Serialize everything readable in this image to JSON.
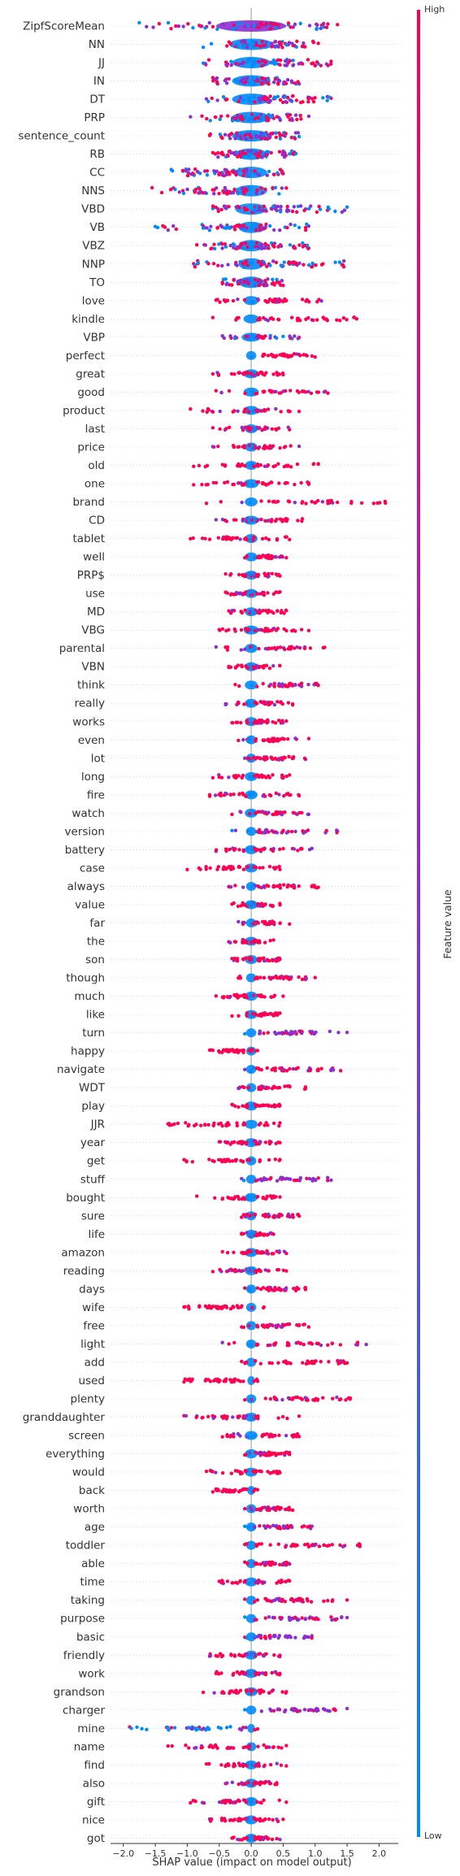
{
  "chart_data": {
    "type": "scatter",
    "subtype": "shap-beeswarm-summary",
    "xlabel": "SHAP value (impact on model output)",
    "xlim": [
      -2.2,
      2.3
    ],
    "xticks": [
      -2.0,
      -1.5,
      -1.0,
      -0.5,
      0.0,
      0.5,
      1.0,
      1.5,
      2.0
    ],
    "xtick_labels": [
      "−2.0",
      "−1.5",
      "−1.0",
      "−0.5",
      "0.0",
      "0.5",
      "1.0",
      "1.5",
      "2.0"
    ],
    "colorbar": {
      "title": "Feature value",
      "high_label": "High",
      "low_label": "Low",
      "high_color": "#ff0052",
      "low_color": "#008bfb"
    },
    "grid": false,
    "features": [
      {
        "name": "ZipfScoreMean",
        "range": [
          -1.75,
          1.35
        ],
        "color": "mixed",
        "core": 0.55
      },
      {
        "name": "NN",
        "range": [
          -0.75,
          1.05
        ],
        "color": "mixed",
        "core": 0.35
      },
      {
        "name": "JJ",
        "range": [
          -0.75,
          1.25
        ],
        "color": "mixed",
        "core": 0.3
      },
      {
        "name": "IN",
        "range": [
          -0.6,
          0.75
        ],
        "color": "mixed",
        "core": 0.3
      },
      {
        "name": "DT",
        "range": [
          -0.7,
          1.25
        ],
        "color": "mixed",
        "core": 0.3
      },
      {
        "name": "PRP",
        "range": [
          -0.95,
          0.9
        ],
        "color": "mixed",
        "core": 0.3
      },
      {
        "name": "sentence_count",
        "range": [
          -0.65,
          0.75
        ],
        "color": "mixed",
        "core": 0.3
      },
      {
        "name": "RB",
        "range": [
          -0.6,
          0.7
        ],
        "color": "mixed",
        "core": 0.25
      },
      {
        "name": "CC",
        "range": [
          -1.25,
          0.5
        ],
        "color": "mixed",
        "core": 0.25
      },
      {
        "name": "NNS",
        "range": [
          -1.55,
          0.55
        ],
        "color": "mixed",
        "core": 0.25
      },
      {
        "name": "VBD",
        "range": [
          -0.6,
          1.5
        ],
        "color": "mixed",
        "core": 0.25
      },
      {
        "name": "VB",
        "range": [
          -1.5,
          0.9
        ],
        "color": "mixed",
        "core": 0.2
      },
      {
        "name": "VBZ",
        "range": [
          -0.85,
          0.9
        ],
        "color": "mixed",
        "core": 0.2
      },
      {
        "name": "NNP",
        "range": [
          -0.9,
          1.45
        ],
        "color": "mixed",
        "core": 0.2
      },
      {
        "name": "TO",
        "range": [
          -0.45,
          0.5
        ],
        "color": "mixed",
        "core": 0.2
      },
      {
        "name": "love",
        "range": [
          -0.55,
          1.1
        ],
        "color": "pos",
        "core": 0.12
      },
      {
        "name": "kindle",
        "range": [
          -0.6,
          1.65
        ],
        "color": "pos",
        "core": 0.12
      },
      {
        "name": "VBP",
        "range": [
          -0.45,
          0.75
        ],
        "color": "mixed",
        "core": 0.15
      },
      {
        "name": "perfect",
        "range": [
          0.0,
          1.0
        ],
        "color": "pos",
        "core": 0.08
      },
      {
        "name": "great",
        "range": [
          -0.6,
          0.5
        ],
        "color": "pos",
        "core": 0.12
      },
      {
        "name": "good",
        "range": [
          -0.55,
          1.2
        ],
        "color": "pos",
        "core": 0.12
      },
      {
        "name": "product",
        "range": [
          -0.95,
          0.75
        ],
        "color": "pos",
        "core": 0.12
      },
      {
        "name": "last",
        "range": [
          -0.6,
          0.6
        ],
        "color": "pos",
        "core": 0.1
      },
      {
        "name": "price",
        "range": [
          -0.6,
          0.75
        ],
        "color": "pos",
        "core": 0.1
      },
      {
        "name": "old",
        "range": [
          -0.9,
          1.05
        ],
        "color": "pos",
        "core": 0.1
      },
      {
        "name": "one",
        "range": [
          -0.9,
          0.9
        ],
        "color": "pos",
        "core": 0.12
      },
      {
        "name": "brand",
        "range": [
          -0.7,
          2.1
        ],
        "color": "pos",
        "core": 0.1
      },
      {
        "name": "CD",
        "range": [
          -0.55,
          0.8
        ],
        "color": "pos",
        "core": 0.12
      },
      {
        "name": "tablet",
        "range": [
          -0.95,
          0.6
        ],
        "color": "pos",
        "core": 0.1
      },
      {
        "name": "well",
        "range": [
          -0.1,
          0.55
        ],
        "color": "pos",
        "core": 0.1
      },
      {
        "name": "PRP$",
        "range": [
          -0.4,
          0.45
        ],
        "color": "pos",
        "core": 0.1
      },
      {
        "name": "use",
        "range": [
          -0.4,
          0.45
        ],
        "color": "pos",
        "core": 0.1
      },
      {
        "name": "MD",
        "range": [
          -0.35,
          0.55
        ],
        "color": "pos",
        "core": 0.1
      },
      {
        "name": "VBG",
        "range": [
          -0.5,
          0.9
        ],
        "color": "pos",
        "core": 0.12
      },
      {
        "name": "parental",
        "range": [
          -0.55,
          1.15
        ],
        "color": "pos",
        "core": 0.1
      },
      {
        "name": "VBN",
        "range": [
          -0.35,
          0.45
        ],
        "color": "pos",
        "core": 0.1
      },
      {
        "name": "think",
        "range": [
          -0.25,
          1.05
        ],
        "color": "pos",
        "core": 0.1
      },
      {
        "name": "really",
        "range": [
          -0.4,
          0.65
        ],
        "color": "pos",
        "core": 0.1
      },
      {
        "name": "works",
        "range": [
          -0.3,
          0.55
        ],
        "color": "pos",
        "core": 0.1
      },
      {
        "name": "even",
        "range": [
          -0.2,
          0.9
        ],
        "color": "pos",
        "core": 0.08
      },
      {
        "name": "lot",
        "range": [
          -0.1,
          0.85
        ],
        "color": "pos",
        "core": 0.08
      },
      {
        "name": "long",
        "range": [
          -0.6,
          0.6
        ],
        "color": "pos",
        "core": 0.1
      },
      {
        "name": "fire",
        "range": [
          -0.65,
          0.75
        ],
        "color": "pos",
        "core": 0.1
      },
      {
        "name": "watch",
        "range": [
          -0.3,
          0.9
        ],
        "color": "pos",
        "core": 0.1
      },
      {
        "name": "version",
        "range": [
          -0.3,
          1.35
        ],
        "color": "purple",
        "core": 0.08
      },
      {
        "name": "battery",
        "range": [
          -0.55,
          0.95
        ],
        "color": "pos",
        "core": 0.1
      },
      {
        "name": "case",
        "range": [
          -1.0,
          0.45
        ],
        "color": "neg",
        "core": 0.1
      },
      {
        "name": "always",
        "range": [
          -0.35,
          1.05
        ],
        "color": "pos",
        "core": 0.08
      },
      {
        "name": "value",
        "range": [
          -0.3,
          0.45
        ],
        "color": "pos",
        "core": 0.1
      },
      {
        "name": "far",
        "range": [
          -0.2,
          0.6
        ],
        "color": "pos",
        "core": 0.08
      },
      {
        "name": "the",
        "range": [
          -0.35,
          0.35
        ],
        "color": "pos",
        "core": 0.1
      },
      {
        "name": "son",
        "range": [
          -0.3,
          0.45
        ],
        "color": "pos",
        "core": 0.1
      },
      {
        "name": "though",
        "range": [
          -0.2,
          1.0
        ],
        "color": "pos",
        "core": 0.08
      },
      {
        "name": "much",
        "range": [
          -0.55,
          0.5
        ],
        "color": "pos",
        "core": 0.1
      },
      {
        "name": "like",
        "range": [
          -0.3,
          0.45
        ],
        "color": "pos",
        "core": 0.1
      },
      {
        "name": "turn",
        "range": [
          -0.1,
          1.5
        ],
        "color": "purple",
        "core": 0.08
      },
      {
        "name": "happy",
        "range": [
          -0.65,
          0.1
        ],
        "color": "neg",
        "core": 0.08
      },
      {
        "name": "navigate",
        "range": [
          -0.1,
          1.4
        ],
        "color": "pos",
        "core": 0.08
      },
      {
        "name": "WDT",
        "range": [
          -0.2,
          0.85
        ],
        "color": "pos",
        "core": 0.08
      },
      {
        "name": "play",
        "range": [
          -0.3,
          0.45
        ],
        "color": "pos",
        "core": 0.1
      },
      {
        "name": "JJR",
        "range": [
          -1.3,
          0.45
        ],
        "color": "neg",
        "core": 0.1
      },
      {
        "name": "year",
        "range": [
          -0.5,
          0.45
        ],
        "color": "pos",
        "core": 0.1
      },
      {
        "name": "get",
        "range": [
          -1.05,
          0.45
        ],
        "color": "neg",
        "core": 0.08
      },
      {
        "name": "stuff",
        "range": [
          -0.15,
          1.25
        ],
        "color": "purple",
        "core": 0.08
      },
      {
        "name": "bought",
        "range": [
          -0.85,
          0.45
        ],
        "color": "neg",
        "core": 0.1
      },
      {
        "name": "sure",
        "range": [
          -0.15,
          0.75
        ],
        "color": "pos",
        "core": 0.08
      },
      {
        "name": "life",
        "range": [
          -0.15,
          0.35
        ],
        "color": "pos",
        "core": 0.08
      },
      {
        "name": "amazon",
        "range": [
          -0.45,
          0.55
        ],
        "color": "pos",
        "core": 0.1
      },
      {
        "name": "reading",
        "range": [
          -0.6,
          0.55
        ],
        "color": "pos",
        "core": 0.1
      },
      {
        "name": "days",
        "range": [
          -0.1,
          0.85
        ],
        "color": "pos",
        "core": 0.08
      },
      {
        "name": "wife",
        "range": [
          -1.05,
          0.2
        ],
        "color": "neg",
        "core": 0.08
      },
      {
        "name": "free",
        "range": [
          -0.15,
          0.9
        ],
        "color": "pos",
        "core": 0.08
      },
      {
        "name": "light",
        "range": [
          -0.45,
          1.8
        ],
        "color": "pos",
        "core": 0.08
      },
      {
        "name": "add",
        "range": [
          -0.15,
          1.5
        ],
        "color": "pos",
        "core": 0.08
      },
      {
        "name": "used",
        "range": [
          -1.05,
          0.1
        ],
        "color": "neg",
        "core": 0.06
      },
      {
        "name": "plenty",
        "range": [
          -0.1,
          1.55
        ],
        "color": "pos",
        "core": 0.08
      },
      {
        "name": "granddaughter",
        "range": [
          -1.05,
          0.75
        ],
        "color": "pos",
        "core": 0.1
      },
      {
        "name": "screen",
        "range": [
          -0.45,
          0.75
        ],
        "color": "pos",
        "core": 0.1
      },
      {
        "name": "everything",
        "range": [
          -0.1,
          0.6
        ],
        "color": "pos",
        "core": 0.1
      },
      {
        "name": "would",
        "range": [
          -0.7,
          0.45
        ],
        "color": "pos",
        "core": 0.1
      },
      {
        "name": "back",
        "range": [
          -0.6,
          0.1
        ],
        "color": "neg",
        "core": 0.06
      },
      {
        "name": "worth",
        "range": [
          -0.1,
          0.65
        ],
        "color": "pos",
        "core": 0.08
      },
      {
        "name": "age",
        "range": [
          -0.1,
          0.95
        ],
        "color": "purple",
        "core": 0.08
      },
      {
        "name": "toddler",
        "range": [
          -0.1,
          1.7
        ],
        "color": "pos",
        "core": 0.08
      },
      {
        "name": "able",
        "range": [
          -0.1,
          0.6
        ],
        "color": "pos",
        "core": 0.08
      },
      {
        "name": "time",
        "range": [
          -0.5,
          0.6
        ],
        "color": "pos",
        "core": 0.1
      },
      {
        "name": "taking",
        "range": [
          -0.1,
          1.5
        ],
        "color": "pos",
        "core": 0.08
      },
      {
        "name": "purpose",
        "range": [
          -0.1,
          1.5
        ],
        "color": "purple",
        "core": 0.08
      },
      {
        "name": "basic",
        "range": [
          -0.1,
          0.95
        ],
        "color": "purple",
        "core": 0.08
      },
      {
        "name": "friendly",
        "range": [
          -0.65,
          0.45
        ],
        "color": "pos",
        "core": 0.1
      },
      {
        "name": "work",
        "range": [
          -0.55,
          0.45
        ],
        "color": "pos",
        "core": 0.1
      },
      {
        "name": "grandson",
        "range": [
          -0.75,
          0.55
        ],
        "color": "pos",
        "core": 0.1
      },
      {
        "name": "charger",
        "range": [
          -0.1,
          1.5
        ],
        "color": "purple",
        "core": 0.08
      },
      {
        "name": "mine",
        "range": [
          -1.9,
          0.1
        ],
        "color": "purple",
        "core": 0.06
      },
      {
        "name": "name",
        "range": [
          -1.3,
          0.55
        ],
        "color": "pos",
        "core": 0.08
      },
      {
        "name": "find",
        "range": [
          -0.7,
          0.55
        ],
        "color": "pos",
        "core": 0.1
      },
      {
        "name": "also",
        "range": [
          -0.4,
          0.4
        ],
        "color": "pos",
        "core": 0.1
      },
      {
        "name": "gift",
        "range": [
          -0.95,
          0.55
        ],
        "color": "pos",
        "core": 0.1
      },
      {
        "name": "nice",
        "range": [
          -0.65,
          0.5
        ],
        "color": "pos",
        "core": 0.1
      },
      {
        "name": "got",
        "range": [
          -0.3,
          0.45
        ],
        "color": "pos",
        "core": 0.1
      }
    ]
  }
}
